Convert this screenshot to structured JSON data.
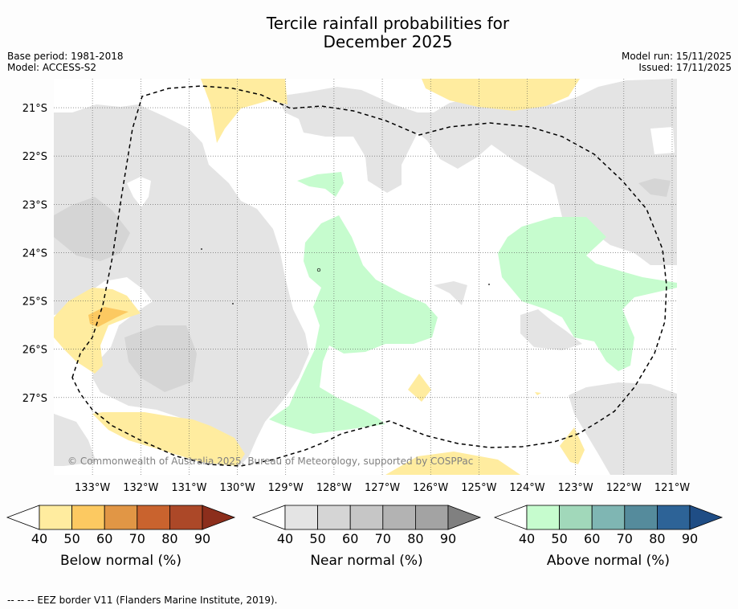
{
  "header": {
    "title_line1": "Tercile rainfall probabilities for",
    "title_line2": "December 2025",
    "base_period": "Base period: 1981-2018",
    "model": "Model: ACCESS-S2",
    "model_run": "Model run: 15/11/2025",
    "issued": "Issued: 17/11/2025"
  },
  "map": {
    "copyright": "© Commonwealth of Australia 2025, Bureau of Meteorology, supported by COSPPac"
  },
  "chart_data": {
    "type": "heatmap",
    "title": "Tercile rainfall probabilities for December 2025",
    "x_ticks": [
      "133°W",
      "132°W",
      "131°W",
      "130°W",
      "129°W",
      "128°W",
      "127°W",
      "126°W",
      "125°W",
      "124°W",
      "123°W",
      "122°W",
      "121°W"
    ],
    "y_ticks": [
      "21°S",
      "22°S",
      "23°S",
      "24°S",
      "25°S",
      "26°S",
      "27°S"
    ],
    "xlim": [
      -133.8,
      -120.9
    ],
    "ylim": [
      -28.6,
      -20.4
    ],
    "colorbars": [
      {
        "label": "Below normal (%)",
        "ticks": [
          "40",
          "50",
          "60",
          "70",
          "80",
          "90"
        ],
        "colors": [
          "#ffffff",
          "#ffec9f",
          "#fcc961",
          "#e19645",
          "#c9632e",
          "#ac4828",
          "#8c2e1c"
        ]
      },
      {
        "label": "Near normal (%)",
        "ticks": [
          "40",
          "50",
          "60",
          "70",
          "80",
          "90"
        ],
        "colors": [
          "#ffffff",
          "#e4e4e4",
          "#d5d5d5",
          "#c6c6c6",
          "#b3b3b3",
          "#a3a3a3",
          "#808080"
        ]
      },
      {
        "label": "Above normal (%)",
        "ticks": [
          "40",
          "50",
          "60",
          "70",
          "80",
          "90"
        ],
        "colors": [
          "#ffffff",
          "#c6fcce",
          "#a1d8ba",
          "#7fb6b3",
          "#558b9c",
          "#2d6397",
          "#1f4d85"
        ]
      }
    ],
    "legend_note": "-- -- -- EEZ border V11 (Flanders Marine Institute, 2019)."
  },
  "colors": {
    "below": "#ffec9f",
    "below_dark": "#fcc961",
    "near": "#e4e4e4",
    "near_dark": "#d5d5d5",
    "above": "#c6fcce"
  }
}
